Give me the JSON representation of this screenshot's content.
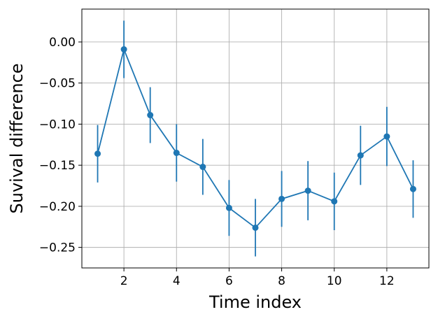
{
  "chart_data": {
    "type": "line",
    "xlabel": "Time index",
    "ylabel": "Suvival difference",
    "xlim": [
      0.4,
      13.6
    ],
    "ylim": [
      -0.275,
      0.04
    ],
    "xticks": [
      2,
      4,
      6,
      8,
      10,
      12
    ],
    "yticks": [
      0.0,
      -0.05,
      -0.1,
      -0.15,
      -0.2,
      -0.25
    ],
    "ytick_labels": [
      "0.00",
      "−0.05",
      "−0.10",
      "−0.15",
      "−0.20",
      "−0.25"
    ],
    "grid": true,
    "x": [
      1,
      2,
      3,
      4,
      5,
      6,
      7,
      8,
      9,
      10,
      11,
      12,
      13
    ],
    "series": [
      {
        "values": [
          -0.136,
          -0.009,
          -0.089,
          -0.135,
          -0.152,
          -0.202,
          -0.226,
          -0.191,
          -0.181,
          -0.194,
          -0.138,
          -0.115,
          -0.179
        ],
        "error": [
          0.035,
          0.035,
          0.034,
          0.035,
          0.034,
          0.034,
          0.035,
          0.034,
          0.036,
          0.035,
          0.036,
          0.036,
          0.035
        ],
        "color": "#1f77b4"
      }
    ]
  }
}
